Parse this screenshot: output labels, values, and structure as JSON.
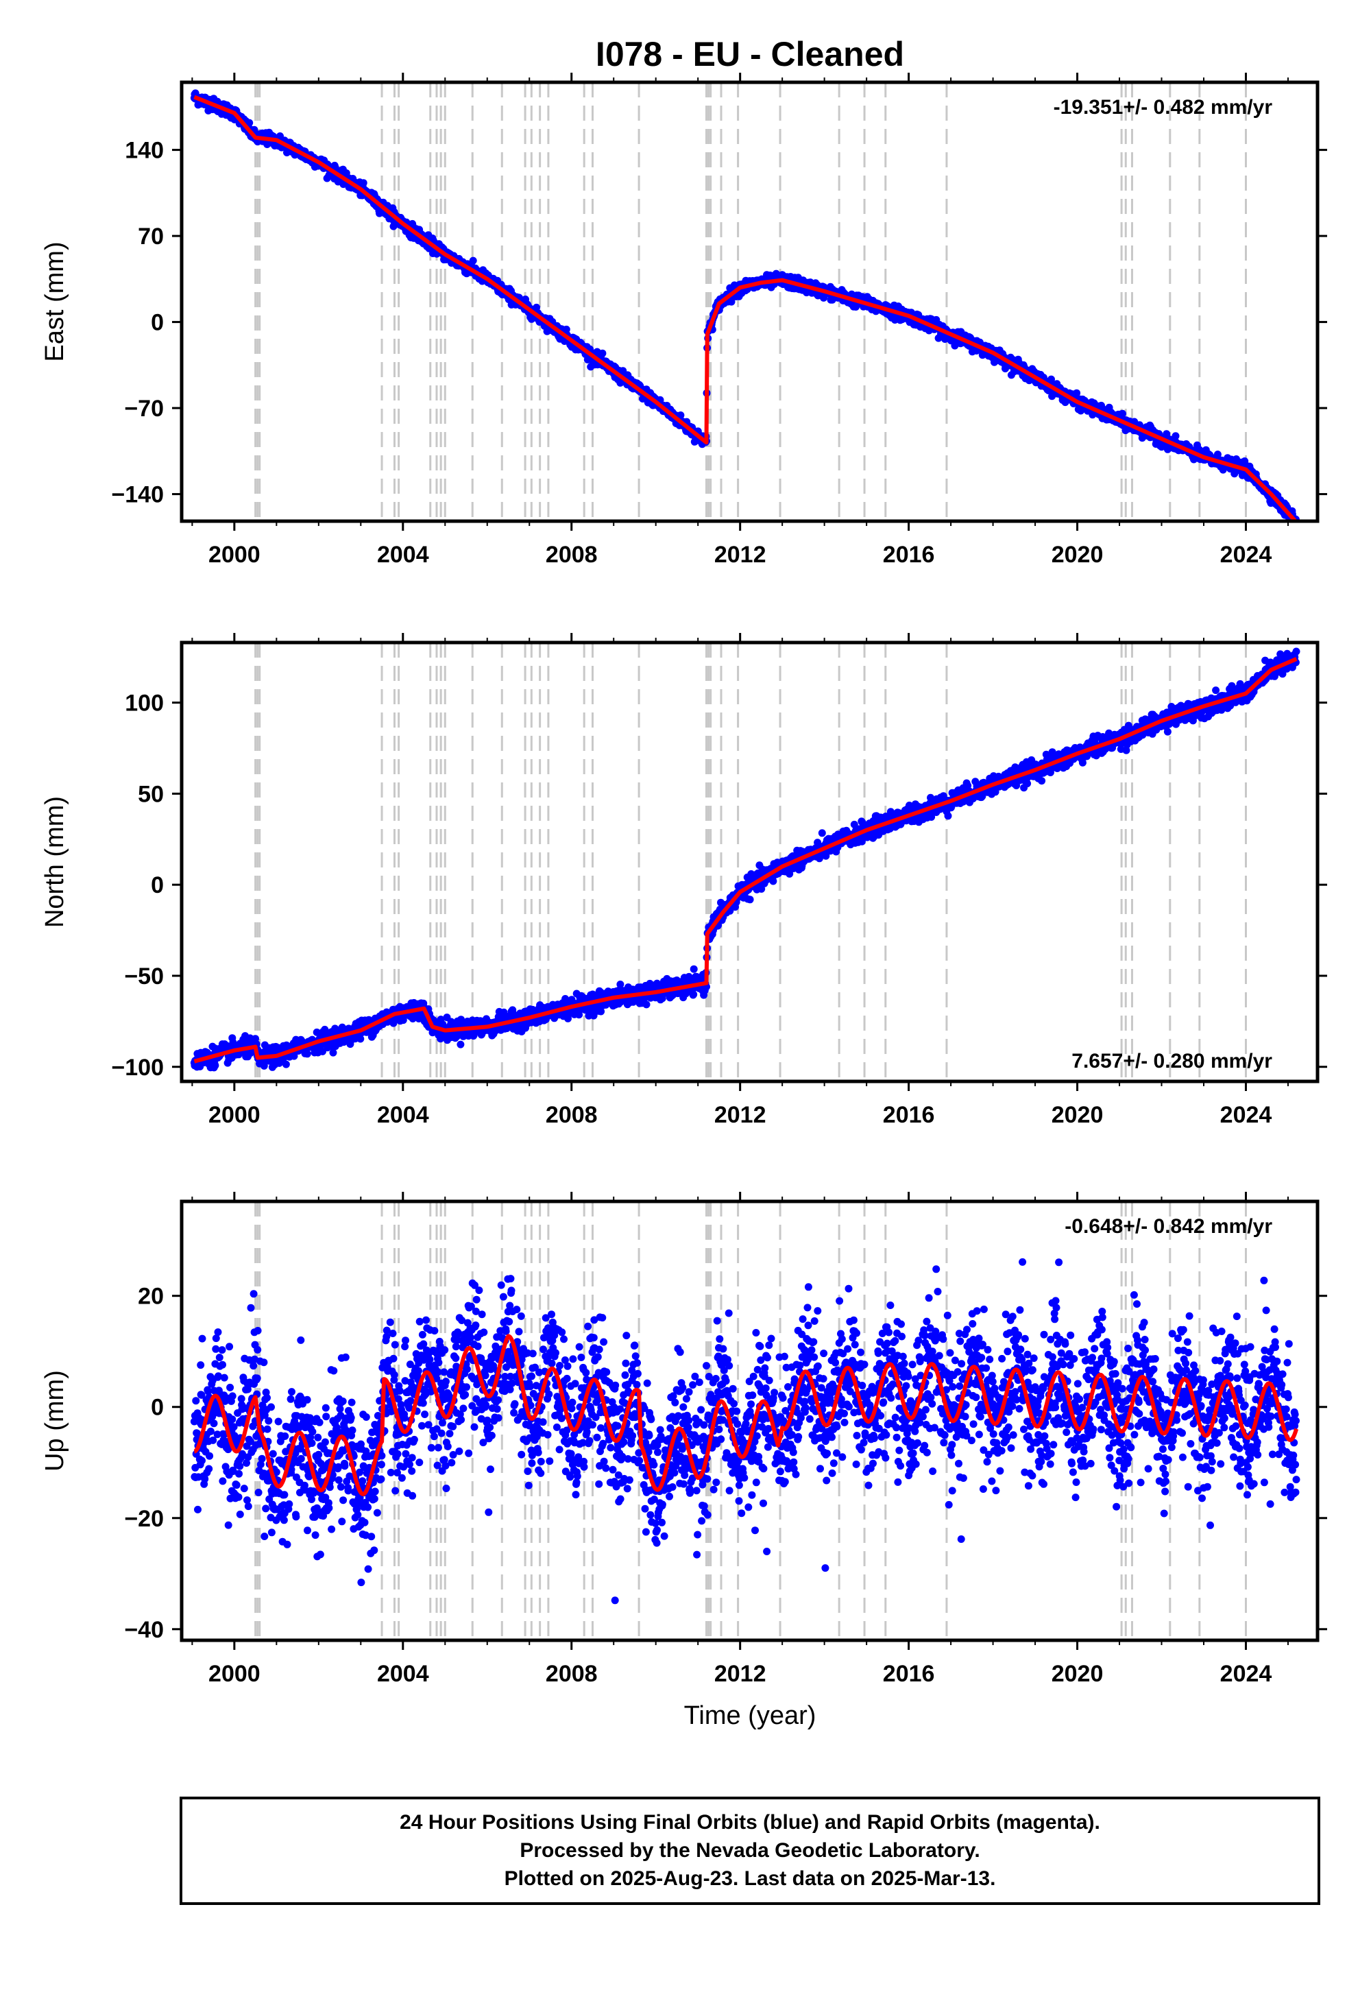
{
  "chart_data": {
    "type": "scatter",
    "title": "I078  - EU - Cleaned",
    "xlabel": "Time (year)",
    "xlim": [
      1998.75,
      2025.7
    ],
    "xticks": [
      2000,
      2004,
      2008,
      2012,
      2016,
      2020,
      2024
    ],
    "x_tick_labels": [
      "2000",
      "2004",
      "2008",
      "2012",
      "2016",
      "2020",
      "2024"
    ],
    "first_data_year": 1999.05,
    "last_data_year": 2025.2,
    "event_lines": [
      2000.5,
      2000.55,
      2000.6,
      2003.5,
      2003.8,
      2003.9,
      2004.65,
      2004.8,
      2004.9,
      2005.0,
      2005.65,
      2006.35,
      2006.9,
      2007.05,
      2007.25,
      2007.45,
      2008.3,
      2008.5,
      2009.6,
      2011.2,
      2011.25,
      2011.3,
      2011.55,
      2011.95,
      2012.95,
      2014.35,
      2014.95,
      2015.45,
      2016.9,
      2021.05,
      2021.15,
      2021.3,
      2022.2,
      2022.9,
      2024.0
    ],
    "panels": [
      {
        "ylabel": "East (mm)",
        "ylim": [
          -162,
          195
        ],
        "yticks": [
          -140,
          -70,
          0,
          70,
          140
        ],
        "y_tick_labels": [
          "−140",
          "−70",
          "0",
          "70",
          "140"
        ],
        "rate_text": "-19.351+/- 0.482 mm/yr",
        "rate_position": "top-right",
        "scatter_jitter_mm": 2.5,
        "model": {
          "x": [
            1999.05,
            2000.0,
            2000.5,
            2001.0,
            2002.0,
            2003.0,
            2004.0,
            2005.0,
            2006.0,
            2007.0,
            2008.0,
            2009.0,
            2010.0,
            2011.2,
            2011.22,
            2011.5,
            2012.0,
            2012.5,
            2013.0,
            2014.0,
            2015.0,
            2016.0,
            2017.0,
            2018.0,
            2019.0,
            2020.0,
            2021.0,
            2022.0,
            2023.0,
            2024.0,
            2024.6,
            2025.2
          ],
          "y": [
            183,
            170,
            150,
            148,
            130,
            108,
            80,
            55,
            35,
            10,
            -15,
            -40,
            -65,
            -98,
            -10,
            15,
            28,
            32,
            34,
            25,
            15,
            5,
            -10,
            -25,
            -45,
            -65,
            -80,
            -95,
            -110,
            -120,
            -140,
            -163
          ]
        }
      },
      {
        "ylabel": "North (mm)",
        "ylim": [
          -108,
          133
        ],
        "yticks": [
          -100,
          -50,
          0,
          50,
          100
        ],
        "y_tick_labels": [
          "−100",
          "−50",
          "0",
          "50",
          "100"
        ],
        "rate_text": "7.657+/- 0.280 mm/yr",
        "rate_position": "bottom-right",
        "scatter_jitter_mm": 2.5,
        "model": {
          "x": [
            1999.05,
            2000.0,
            2000.5,
            2000.55,
            2001.0,
            2002.0,
            2003.0,
            2003.8,
            2004.5,
            2004.7,
            2005.0,
            2006.0,
            2007.0,
            2008.0,
            2009.0,
            2010.0,
            2011.2,
            2011.22,
            2011.6,
            2012.0,
            2013.0,
            2014.0,
            2015.0,
            2016.0,
            2017.0,
            2018.0,
            2019.0,
            2020.0,
            2021.0,
            2022.0,
            2023.0,
            2024.0,
            2024.6,
            2025.2
          ],
          "y": [
            -97,
            -91,
            -89,
            -95,
            -94,
            -86,
            -80,
            -71,
            -68,
            -78,
            -80,
            -78,
            -73,
            -67,
            -62,
            -59,
            -54,
            -27,
            -15,
            -4,
            10,
            20,
            30,
            38,
            46,
            55,
            63,
            72,
            80,
            90,
            98,
            105,
            118,
            124
          ]
        }
      },
      {
        "ylabel": "Up (mm)",
        "ylim": [
          -42,
          37
        ],
        "yticks": [
          -40,
          -20,
          0,
          20
        ],
        "y_tick_labels": [
          "−40",
          "−20",
          "0",
          "20"
        ],
        "rate_text": "-0.648+/- 0.842 mm/yr",
        "rate_position": "top-right",
        "scatter_jitter_mm": 6,
        "seasonal_amplitude_mm": 5,
        "model": {
          "x": [
            1999.05,
            2000.5,
            2000.6,
            2003.5,
            2003.55,
            2004.5,
            2005.0,
            2005.65,
            2006.5,
            2007.0,
            2008.0,
            2009.0,
            2009.6,
            2009.65,
            2010.0,
            2011.0,
            2011.5,
            2012.0,
            2012.9,
            2013.0,
            2016.0,
            2020.0,
            2025.2
          ],
          "y": [
            -3,
            -3,
            -9,
            -11,
            0,
            1,
            3,
            6,
            8,
            3,
            1,
            -1,
            -2,
            -11,
            -10,
            -8,
            -4,
            -4,
            -4,
            1,
            3,
            1,
            -1
          ]
        }
      }
    ],
    "series": [
      {
        "name": "24 Hour Positions Using Final Orbits (blue)",
        "color": "#0000ff"
      },
      {
        "name": "model",
        "color": "#ff0000"
      }
    ],
    "event_line_color": "#c8c8c8",
    "grid": false
  },
  "footer": {
    "line1": "24 Hour Positions Using Final Orbits (blue) and Rapid Orbits (magenta).",
    "line2": "Processed by the Nevada Geodetic Laboratory.",
    "line3": "Plotted on 2025-Aug-23. Last data on 2025-Mar-13."
  }
}
